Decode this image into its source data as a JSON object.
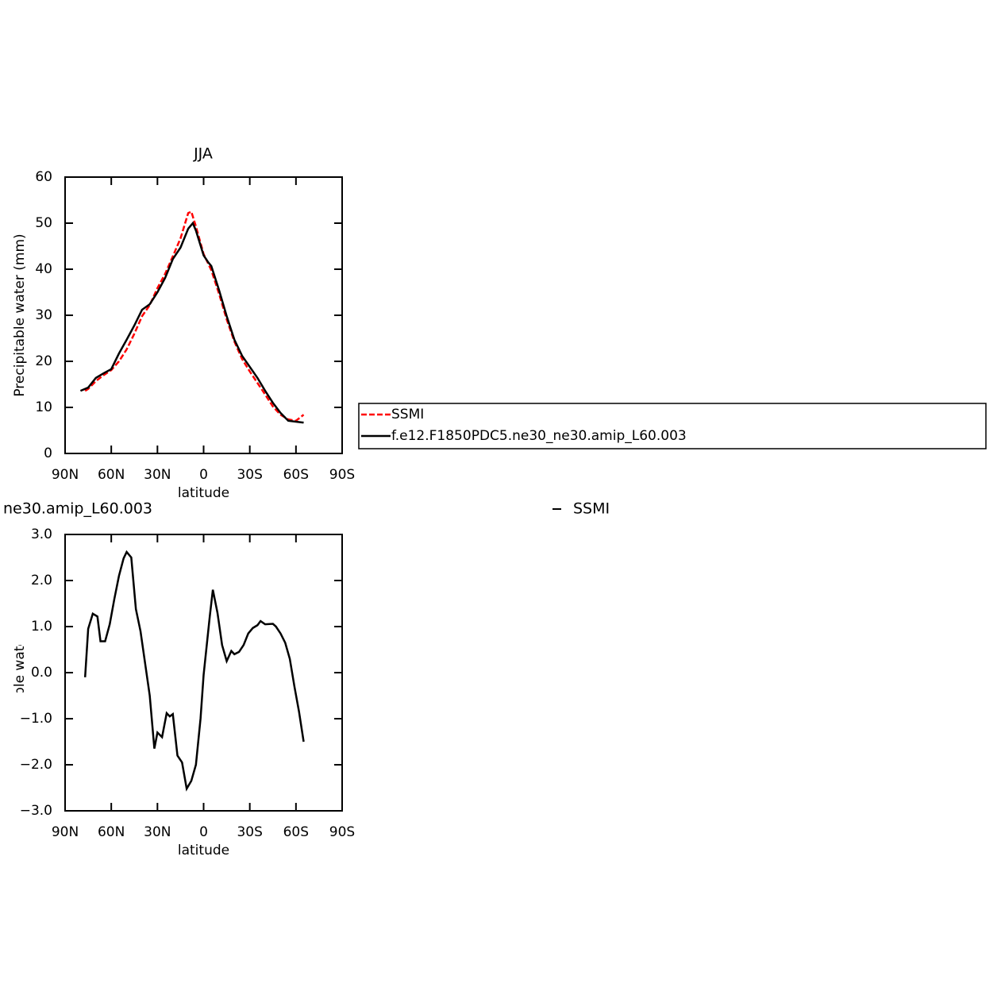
{
  "chart_data": [
    {
      "type": "line",
      "title": "JJA",
      "ylabel": "Precipitable water (mm)",
      "xlabel": "latitude",
      "xlim": [
        90,
        -90
      ],
      "xticks": [
        {
          "value": 90,
          "label": "90N"
        },
        {
          "value": 60,
          "label": "60N"
        },
        {
          "value": 30,
          "label": "30N"
        },
        0,
        {
          "value": -30,
          "label": "30S"
        },
        {
          "value": -60,
          "label": "60S"
        },
        {
          "value": -90,
          "label": "90S"
        }
      ],
      "ylim": [
        0,
        60
      ],
      "yticks": [
        0,
        10,
        20,
        30,
        40,
        50,
        60
      ],
      "legend": "right",
      "series": [
        {
          "name": "SSMI",
          "color": "#ff0000",
          "style": "dashed",
          "x": [
            77,
            75,
            70,
            65,
            60,
            55,
            50,
            45,
            40,
            35,
            30,
            25,
            20,
            15,
            10,
            8,
            5,
            0,
            -5,
            -10,
            -15,
            -20,
            -25,
            -30,
            -35,
            -40,
            -45,
            -50,
            -55,
            -60,
            -65
          ],
          "values": [
            13.6,
            14.0,
            15.7,
            17,
            18.1,
            20,
            22.6,
            26,
            29.8,
            32.2,
            35.9,
            39,
            42.8,
            46.7,
            52.2,
            52.5,
            49.3,
            43.3,
            39.8,
            34.7,
            29.1,
            24.3,
            20.5,
            17.8,
            15.3,
            12.8,
            10.2,
            8.4,
            7.4,
            7.1,
            8.4
          ]
        },
        {
          "name": "f.e12.F1850PDC5.ne30_ne30.amip_L60.003",
          "color": "#000000",
          "style": "solid",
          "x": [
            80,
            75,
            70,
            65,
            60,
            55,
            50,
            45,
            40,
            35,
            30,
            25,
            20,
            15,
            10,
            7,
            5,
            0,
            -3,
            -5,
            -10,
            -15,
            -20,
            -25,
            -30,
            -35,
            -40,
            -45,
            -50,
            -55,
            -60,
            -65
          ],
          "values": [
            13.6,
            14.3,
            16.4,
            17.4,
            18.3,
            21.7,
            24.7,
            27.8,
            31.2,
            32.4,
            35,
            38.1,
            42.2,
            44.7,
            48.8,
            50,
            48.4,
            43,
            41.5,
            40.7,
            35.5,
            29.8,
            24.7,
            21.2,
            18.8,
            16.4,
            13.6,
            11,
            8.8,
            7.1,
            6.9,
            6.7
          ]
        }
      ]
    },
    {
      "type": "line",
      "title": "ne30.amip_L60.003",
      "ylabel": "Precipitable water (mm)",
      "xlabel": "latitude",
      "xlim": [
        90,
        -90
      ],
      "xticks": [
        {
          "value": 90,
          "label": "90N"
        },
        {
          "value": 60,
          "label": "60N"
        },
        {
          "value": 30,
          "label": "30N"
        },
        0,
        {
          "value": -30,
          "label": "30S"
        },
        {
          "value": -60,
          "label": "60S"
        },
        {
          "value": -90,
          "label": "90S"
        }
      ],
      "ylim": [
        -3,
        3
      ],
      "yticks": [
        {
          "value": 3,
          "label": "3.0"
        },
        {
          "value": 2,
          "label": "2.0"
        },
        {
          "value": 1,
          "label": "1.0"
        },
        {
          "value": 0,
          "label": "0.0"
        },
        {
          "value": -1,
          "label": "−1.0"
        },
        {
          "value": -2,
          "label": "−2.0"
        },
        {
          "value": -3,
          "label": "−3.0"
        }
      ],
      "legend": "top",
      "series": [
        {
          "name": "SSMI",
          "color": "#000000",
          "style": "solid",
          "x": [
            77,
            75,
            72,
            69,
            67,
            64,
            61,
            58,
            55,
            52,
            50,
            47,
            44,
            41,
            38,
            35,
            32,
            30,
            27,
            24,
            22,
            20,
            17,
            14,
            11,
            8,
            5,
            2,
            0,
            -4,
            -6,
            -9,
            -12,
            -15,
            -18,
            -20,
            -23,
            -26,
            -29,
            -32,
            -35,
            -37,
            -40,
            -45,
            -47,
            -50,
            -53,
            -56,
            -59,
            -62,
            -65
          ],
          "values": [
            -0.1,
            0.95,
            1.28,
            1.22,
            0.68,
            0.68,
            1.05,
            1.6,
            2.1,
            2.48,
            2.62,
            2.5,
            1.38,
            0.9,
            0.2,
            -0.5,
            -1.65,
            -1.3,
            -1.4,
            -0.88,
            -0.95,
            -0.9,
            -1.8,
            -1.95,
            -2.52,
            -2.35,
            -2.0,
            -1.0,
            -0.05,
            1.22,
            1.8,
            1.3,
            0.6,
            0.25,
            0.47,
            0.4,
            0.45,
            0.6,
            0.85,
            0.97,
            1.03,
            1.12,
            1.05,
            1.06,
            1.0,
            0.85,
            0.65,
            0.3,
            -0.3,
            -0.85,
            -1.5
          ]
        }
      ]
    }
  ]
}
